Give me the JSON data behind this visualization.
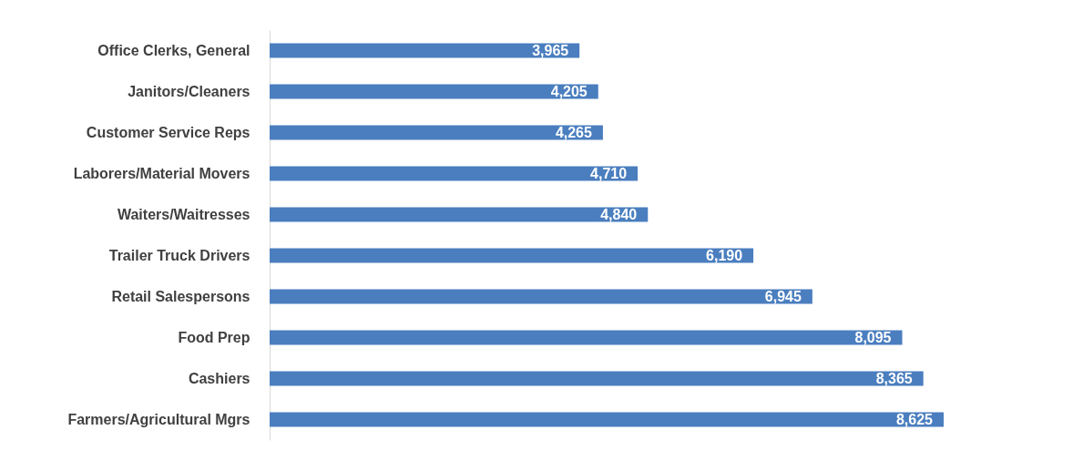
{
  "chart_data": {
    "type": "bar",
    "orientation": "horizontal",
    "categories": [
      "Office Clerks, General",
      "Janitors/Cleaners",
      "Customer Service Reps",
      "Laborers/Material Movers",
      "Waiters/Waitresses",
      "Trailer Truck Drivers",
      "Retail Salespersons",
      "Food Prep",
      "Cashiers",
      "Farmers/Agricultural Mgrs"
    ],
    "values": [
      3965,
      4205,
      4265,
      4710,
      4840,
      6190,
      6945,
      8095,
      8365,
      8625
    ],
    "value_labels": [
      "3,965",
      "4,205",
      "4,265",
      "4,710",
      "4,840",
      "6,190",
      "6,945",
      "8,095",
      "8,365",
      "8,625"
    ],
    "color": "#4a7ebf",
    "grid": false
  }
}
